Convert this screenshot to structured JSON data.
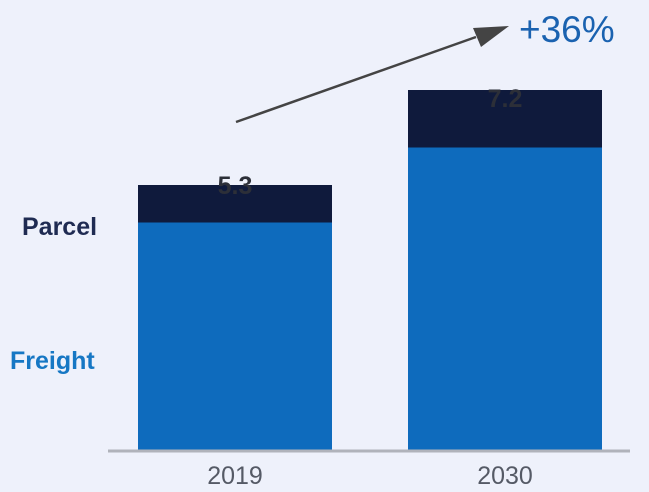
{
  "chart_data": {
    "type": "bar",
    "stacked": true,
    "categories": [
      "2019",
      "2030"
    ],
    "series": [
      {
        "name": "Freight",
        "values": [
          4.55,
          6.05
        ]
      },
      {
        "name": "Parcel",
        "values": [
          0.75,
          1.15
        ]
      }
    ],
    "totals": [
      "5.3",
      "7.2"
    ],
    "annotation": "+36%",
    "title": "",
    "xlabel": "",
    "ylabel": "",
    "ylim": [
      0,
      7.4
    ],
    "grid": false,
    "legend": "left"
  },
  "colors": {
    "background": "#eef1fb",
    "freight": "#0e6bbd",
    "parcel": "#0f1a3c",
    "parcel_label": "#1f2b52",
    "freight_label": "#1677c4",
    "growth_label": "#1a62b0",
    "arrow": "#444444",
    "axis": "#b0b3bb"
  }
}
